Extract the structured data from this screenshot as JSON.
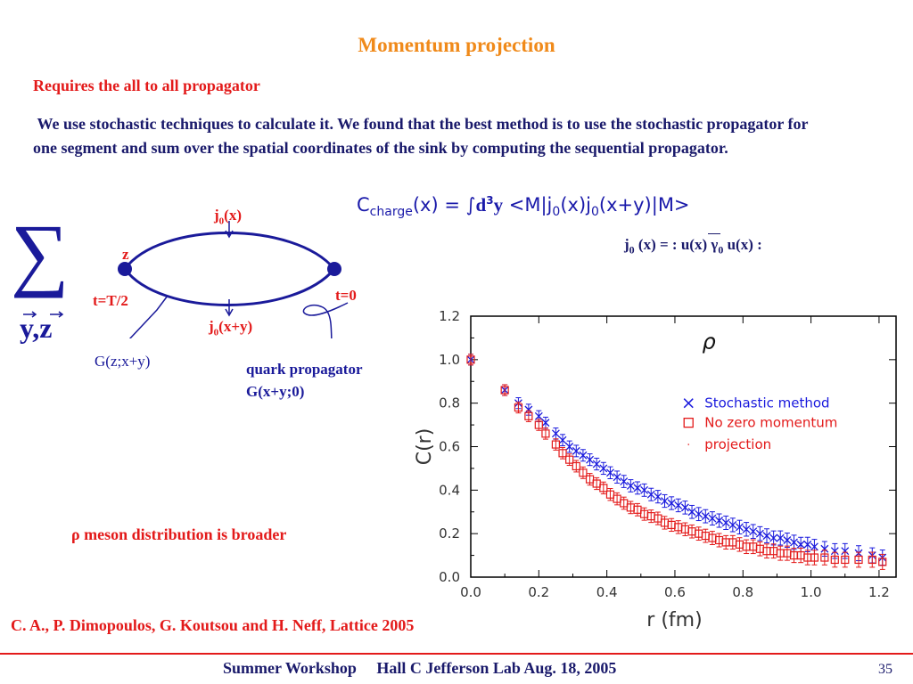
{
  "slide": {
    "title": "Momentum projection",
    "subtitle": "Requires the all to all propagator",
    "paragraph": " We use stochastic techniques to calculate it. We found that the best method is to use the stochastic propagator for one segment and sum over the spatial coordinates of the sink by computing the sequential propagator.",
    "formula_main": "C",
    "formula_sub": "charge",
    "formula_rest_a": "(x) = ∫",
    "formula_bold": "d",
    "formula_sup": "3",
    "formula_bold2": "y",
    "formula_rest_b": " <M|j",
    "formula_sub2": "0",
    "formula_rest_c": "(x)j",
    "formula_sub3": "0",
    "formula_rest_d": "(x+y)|M>",
    "current_def": "j0 (x) = : u(x) γ0 u(x) :",
    "current_a": "j",
    "current_sub": "0",
    "current_b": " (x) = : u(x) γ",
    "current_sub2": "0",
    "current_c": " u(x) :",
    "sigma": "∑",
    "sum_vars": "y,z",
    "rho_note": "ρ meson distribution is broader",
    "citation": "C. A., P. Dimopoulos, G. Koutsou and H. Neff, Lattice 2005",
    "footer": "Summer Workshop     Hall C Jefferson Lab Aug. 18, 2005",
    "page_number": "35"
  },
  "diagram": {
    "top_label_a": "j",
    "top_label_sub": "0",
    "top_label_b": "(x)",
    "bottom_label_a": "j",
    "bottom_label_sub": "0",
    "bottom_label_b": "(x+y)",
    "vertex_left": "z",
    "time_left": "t=T/2",
    "time_right": "t=0",
    "prop_left": "G(z;x+y)",
    "prop_right_1": "quark propagator",
    "prop_right_2": "G(x+y;0)"
  },
  "chart_data": {
    "type": "scatter",
    "annotation": "ρ",
    "xlabel": "r  (fm)",
    "ylabel": "C(r)",
    "xlim": [
      0.0,
      1.25
    ],
    "ylim": [
      0.0,
      1.2
    ],
    "xticks": [
      "0.0",
      "0.2",
      "0.4",
      "0.6",
      "0.8",
      "1.0",
      "1.2"
    ],
    "yticks": [
      "0.0",
      "0.2",
      "0.4",
      "0.6",
      "0.8",
      "1.0",
      "1.2"
    ],
    "legend": [
      "Stochastic method",
      "No zero momentum",
      "projection"
    ],
    "legend_position": "top-right",
    "series": [
      {
        "name": "Stochastic method",
        "marker": "x",
        "color": "#1a1add",
        "x": [
          0.0,
          0.1,
          0.14,
          0.17,
          0.2,
          0.22,
          0.25,
          0.27,
          0.29,
          0.31,
          0.33,
          0.35,
          0.37,
          0.39,
          0.41,
          0.43,
          0.45,
          0.47,
          0.49,
          0.51,
          0.53,
          0.55,
          0.57,
          0.59,
          0.61,
          0.63,
          0.65,
          0.67,
          0.69,
          0.71,
          0.73,
          0.75,
          0.77,
          0.79,
          0.81,
          0.83,
          0.85,
          0.87,
          0.89,
          0.91,
          0.93,
          0.95,
          0.97,
          0.99,
          1.01,
          1.04,
          1.07,
          1.1,
          1.14,
          1.18,
          1.21
        ],
        "y": [
          1.0,
          0.86,
          0.8,
          0.77,
          0.74,
          0.71,
          0.66,
          0.63,
          0.6,
          0.58,
          0.56,
          0.54,
          0.52,
          0.5,
          0.48,
          0.46,
          0.44,
          0.42,
          0.41,
          0.4,
          0.38,
          0.37,
          0.35,
          0.34,
          0.33,
          0.32,
          0.3,
          0.29,
          0.28,
          0.27,
          0.26,
          0.25,
          0.24,
          0.23,
          0.22,
          0.21,
          0.2,
          0.19,
          0.18,
          0.18,
          0.17,
          0.16,
          0.15,
          0.15,
          0.14,
          0.13,
          0.12,
          0.12,
          0.11,
          0.1,
          0.09
        ]
      },
      {
        "name": "No zero momentum projection",
        "marker": "square",
        "color": "#e31a1a",
        "x": [
          0.0,
          0.1,
          0.14,
          0.17,
          0.2,
          0.22,
          0.25,
          0.27,
          0.29,
          0.31,
          0.33,
          0.35,
          0.37,
          0.39,
          0.41,
          0.43,
          0.45,
          0.47,
          0.49,
          0.51,
          0.53,
          0.55,
          0.57,
          0.59,
          0.61,
          0.63,
          0.65,
          0.67,
          0.69,
          0.71,
          0.73,
          0.75,
          0.77,
          0.79,
          0.81,
          0.83,
          0.85,
          0.87,
          0.89,
          0.91,
          0.93,
          0.95,
          0.97,
          0.99,
          1.01,
          1.04,
          1.07,
          1.1,
          1.14,
          1.18,
          1.21
        ],
        "y": [
          1.0,
          0.86,
          0.78,
          0.74,
          0.7,
          0.66,
          0.61,
          0.57,
          0.54,
          0.51,
          0.48,
          0.45,
          0.43,
          0.41,
          0.38,
          0.36,
          0.34,
          0.32,
          0.31,
          0.29,
          0.28,
          0.27,
          0.25,
          0.24,
          0.23,
          0.22,
          0.21,
          0.2,
          0.19,
          0.18,
          0.17,
          0.16,
          0.16,
          0.15,
          0.14,
          0.14,
          0.13,
          0.12,
          0.12,
          0.11,
          0.11,
          0.1,
          0.1,
          0.09,
          0.09,
          0.09,
          0.08,
          0.08,
          0.08,
          0.08,
          0.07
        ]
      }
    ]
  }
}
